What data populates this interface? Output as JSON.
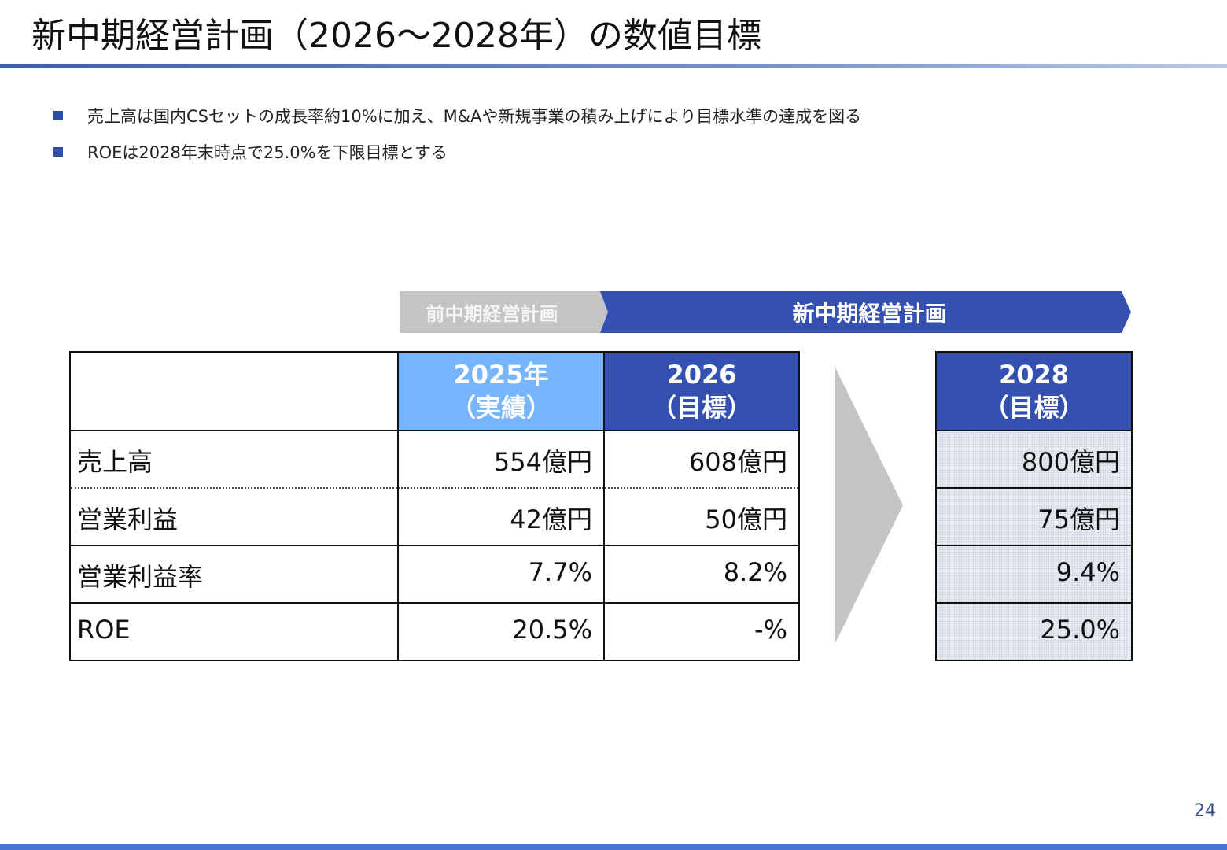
{
  "title": "新中期経営計画（2026〜2028年）の数値目標",
  "bullets": [
    "売上高は国内CSセットの成長率約10%に加え、M&Aや新規事業の積み上げにより目標水準の達成を図る",
    "ROEは2028年末時点で25.0%を下限目標とする"
  ],
  "banners": {
    "previous_plan": "前中期経営計画",
    "new_plan": "新中期経営計画"
  },
  "table": {
    "columns": [
      {
        "year": "2025年",
        "note": "（実績）",
        "color": "#76b4fb"
      },
      {
        "year": "2026",
        "note": "（目標）",
        "color": "#3451b2"
      }
    ],
    "rows": [
      {
        "label": "売上高",
        "values": [
          "554億円",
          "608億円"
        ]
      },
      {
        "label": "営業利益",
        "values": [
          "42億円",
          "50億円"
        ]
      },
      {
        "label": "営業利益率",
        "values": [
          "7.7%",
          "8.2%"
        ]
      },
      {
        "label": "ROE",
        "values": [
          "20.5%",
          "-%"
        ]
      }
    ]
  },
  "target": {
    "year": "2028",
    "note": "（目標）",
    "color": "#3451b2",
    "values": [
      "800億円",
      "75億円",
      "9.4%",
      "25.0%"
    ]
  },
  "page_number": "24",
  "colors": {
    "accent_dark": "#3451b2",
    "accent_light": "#76b4fb",
    "gray": "#c4c4c4"
  }
}
